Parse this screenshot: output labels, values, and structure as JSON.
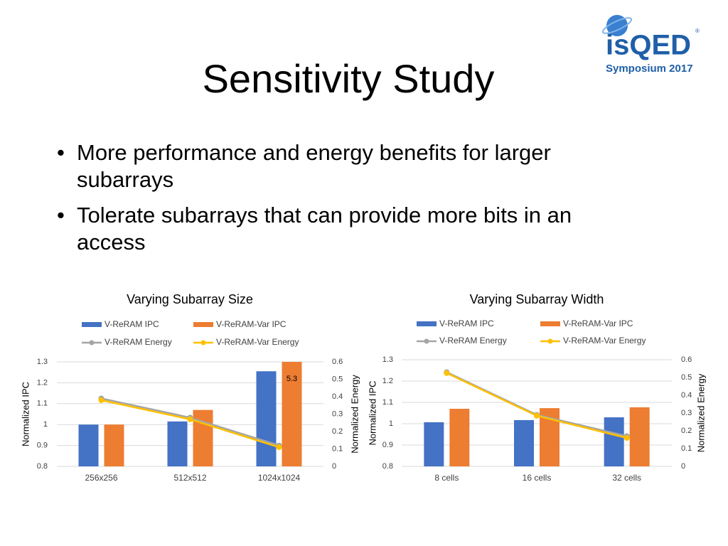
{
  "slide_title": "Sensitivity Study",
  "bullets": [
    "More performance and energy benefits for larger subarrays",
    "Tolerate subarrays that can provide more bits in an access"
  ],
  "logo": {
    "name": "isQED",
    "mark": "®",
    "event": "Symposium 2017"
  },
  "chart_data": [
    {
      "type": "bar",
      "title": "Varying Subarray Size",
      "categories": [
        "256x256",
        "512x512",
        "1024x1024"
      ],
      "ylabel": "Normalized IPC",
      "y2label": "Normalized Energy",
      "ylim": [
        0.8,
        1.3
      ],
      "yticks": [
        0.8,
        0.9,
        1,
        1.1,
        1.2,
        1.3
      ],
      "y2lim": [
        0,
        0.6
      ],
      "y2ticks": [
        0,
        0.1,
        0.2,
        0.3,
        0.4,
        0.5,
        0.6
      ],
      "grid": true,
      "series": [
        {
          "name": "V-ReRAM IPC",
          "type": "bar",
          "color": "#4472c4",
          "values": [
            1.0,
            1.015,
            1.255
          ]
        },
        {
          "name": "V-ReRAM-Var IPC",
          "type": "bar",
          "color": "#ed7d31",
          "values": [
            1.0,
            1.07,
            5.3
          ],
          "value_labels": [
            null,
            null,
            "5.3"
          ]
        },
        {
          "name": "V-ReRAM Energy",
          "type": "line",
          "axis": "y2",
          "color": "#a5a5a5",
          "values": [
            0.39,
            0.28,
            0.12
          ]
        },
        {
          "name": "V-ReRAM-Var Energy",
          "type": "line",
          "axis": "y2",
          "color": "#ffc000",
          "values": [
            0.38,
            0.27,
            0.11
          ]
        }
      ]
    },
    {
      "type": "bar",
      "title": "Varying Subarray Width",
      "categories": [
        "8 cells",
        "16 cells",
        "32 cells"
      ],
      "ylabel": "Normalized IPC",
      "y2label": "Normalized Energy",
      "ylim": [
        0.8,
        1.3
      ],
      "yticks": [
        0.8,
        0.9,
        1,
        1.1,
        1.2,
        1.3
      ],
      "y2lim": [
        0,
        0.6
      ],
      "y2ticks": [
        0,
        0.1,
        0.2,
        0.3,
        0.4,
        0.5,
        0.6
      ],
      "grid": true,
      "series": [
        {
          "name": "V-ReRAM IPC",
          "type": "bar",
          "color": "#4472c4",
          "values": [
            1.007,
            1.017,
            1.03
          ]
        },
        {
          "name": "V-ReRAM-Var IPC",
          "type": "bar",
          "color": "#ed7d31",
          "values": [
            1.07,
            1.073,
            1.077
          ]
        },
        {
          "name": "V-ReRAM Energy",
          "type": "line",
          "axis": "y2",
          "color": "#a5a5a5",
          "values": [
            0.53,
            0.29,
            0.17
          ]
        },
        {
          "name": "V-ReRAM-Var Energy",
          "type": "line",
          "axis": "y2",
          "color": "#ffc000",
          "values": [
            0.525,
            0.285,
            0.16
          ]
        }
      ]
    }
  ]
}
